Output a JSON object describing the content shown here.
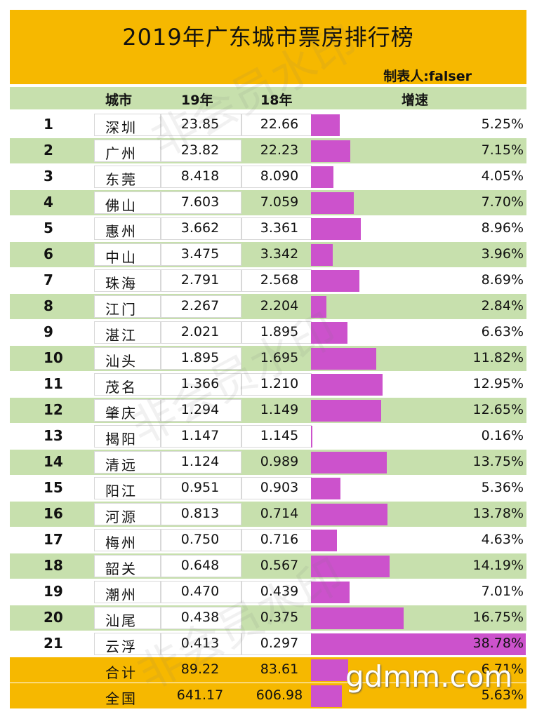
{
  "header": {
    "title": "2019年广东城市票房排行榜",
    "maker": "制表人:falser"
  },
  "columns": {
    "city": "城市",
    "y19": "19年",
    "y18": "18年",
    "growth": "增速"
  },
  "colors": {
    "header_bg": "#f6b800",
    "row_green": "#c7e0ad",
    "bar": "#cc52cc"
  },
  "chart_data": {
    "type": "table",
    "title": "2019年广东城市票房排行榜",
    "growth_max": 38.78,
    "rows": [
      {
        "rank": "1",
        "city": "深圳",
        "y19": "23.85",
        "y18": "22.66",
        "growth": 5.25,
        "growth_label": "5.25%"
      },
      {
        "rank": "2",
        "city": "广州",
        "y19": "23.82",
        "y18": "22.23",
        "growth": 7.15,
        "growth_label": "7.15%"
      },
      {
        "rank": "3",
        "city": "东莞",
        "y19": "8.418",
        "y18": "8.090",
        "growth": 4.05,
        "growth_label": "4.05%"
      },
      {
        "rank": "4",
        "city": "佛山",
        "y19": "7.603",
        "y18": "7.059",
        "growth": 7.7,
        "growth_label": "7.70%"
      },
      {
        "rank": "5",
        "city": "惠州",
        "y19": "3.662",
        "y18": "3.361",
        "growth": 8.96,
        "growth_label": "8.96%"
      },
      {
        "rank": "6",
        "city": "中山",
        "y19": "3.475",
        "y18": "3.342",
        "growth": 3.96,
        "growth_label": "3.96%"
      },
      {
        "rank": "7",
        "city": "珠海",
        "y19": "2.791",
        "y18": "2.568",
        "growth": 8.69,
        "growth_label": "8.69%"
      },
      {
        "rank": "8",
        "city": "江门",
        "y19": "2.267",
        "y18": "2.204",
        "growth": 2.84,
        "growth_label": "2.84%"
      },
      {
        "rank": "9",
        "city": "湛江",
        "y19": "2.021",
        "y18": "1.895",
        "growth": 6.63,
        "growth_label": "6.63%"
      },
      {
        "rank": "10",
        "city": "汕头",
        "y19": "1.895",
        "y18": "1.695",
        "growth": 11.82,
        "growth_label": "11.82%"
      },
      {
        "rank": "11",
        "city": "茂名",
        "y19": "1.366",
        "y18": "1.210",
        "growth": 12.95,
        "growth_label": "12.95%"
      },
      {
        "rank": "12",
        "city": "肇庆",
        "y19": "1.294",
        "y18": "1.149",
        "growth": 12.65,
        "growth_label": "12.65%"
      },
      {
        "rank": "13",
        "city": "揭阳",
        "y19": "1.147",
        "y18": "1.145",
        "growth": 0.16,
        "growth_label": "0.16%"
      },
      {
        "rank": "14",
        "city": "清远",
        "y19": "1.124",
        "y18": "0.989",
        "growth": 13.75,
        "growth_label": "13.75%"
      },
      {
        "rank": "15",
        "city": "阳江",
        "y19": "0.951",
        "y18": "0.903",
        "growth": 5.36,
        "growth_label": "5.36%"
      },
      {
        "rank": "16",
        "city": "河源",
        "y19": "0.813",
        "y18": "0.714",
        "growth": 13.78,
        "growth_label": "13.78%"
      },
      {
        "rank": "17",
        "city": "梅州",
        "y19": "0.750",
        "y18": "0.716",
        "growth": 4.63,
        "growth_label": "4.63%"
      },
      {
        "rank": "18",
        "city": "韶关",
        "y19": "0.648",
        "y18": "0.567",
        "growth": 14.19,
        "growth_label": "14.19%"
      },
      {
        "rank": "19",
        "city": "潮州",
        "y19": "0.470",
        "y18": "0.439",
        "growth": 7.01,
        "growth_label": "7.01%"
      },
      {
        "rank": "20",
        "city": "汕尾",
        "y19": "0.438",
        "y18": "0.375",
        "growth": 16.75,
        "growth_label": "16.75%"
      },
      {
        "rank": "21",
        "city": "云浮",
        "y19": "0.413",
        "y18": "0.297",
        "growth": 38.78,
        "growth_label": "38.78%"
      }
    ],
    "totals": [
      {
        "rank": "",
        "city": "合计",
        "y19": "89.22",
        "y18": "83.61",
        "growth": 6.71,
        "growth_label": "6.71%"
      },
      {
        "rank": "",
        "city": "全国",
        "y19": "641.17",
        "y18": "606.98",
        "growth": 5.63,
        "growth_label": "5.63%"
      }
    ]
  },
  "watermark": {
    "text": "非会员水印",
    "logo": "gdmm.com"
  }
}
